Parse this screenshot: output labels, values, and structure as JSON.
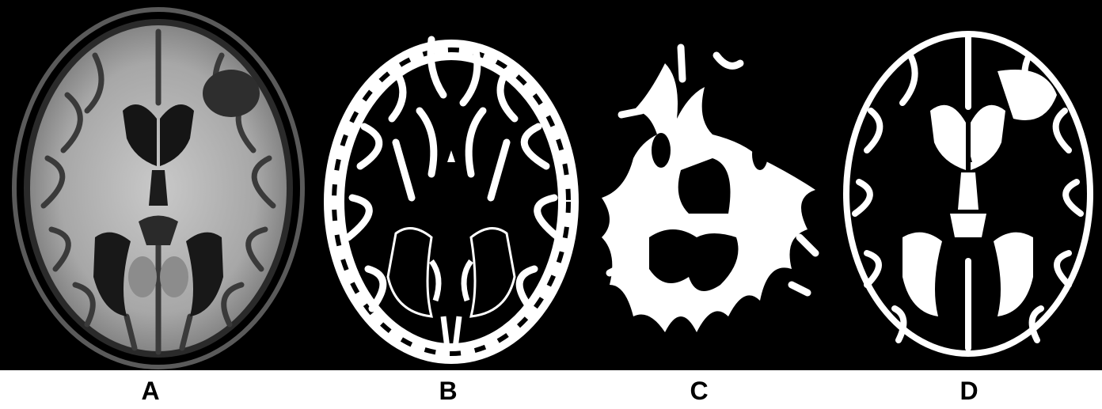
{
  "panels": [
    {
      "label": "A",
      "icon": "mri-t1-axial-slice-icon"
    },
    {
      "label": "B",
      "icon": "gray-matter-segmentation-icon"
    },
    {
      "label": "C",
      "icon": "white-matter-segmentation-icon"
    },
    {
      "label": "D",
      "icon": "csf-segmentation-icon"
    }
  ],
  "colors": {
    "background": "#000000",
    "tissue": "#ffffff",
    "caption_text": "#000000",
    "caption_bg": "#ffffff"
  }
}
